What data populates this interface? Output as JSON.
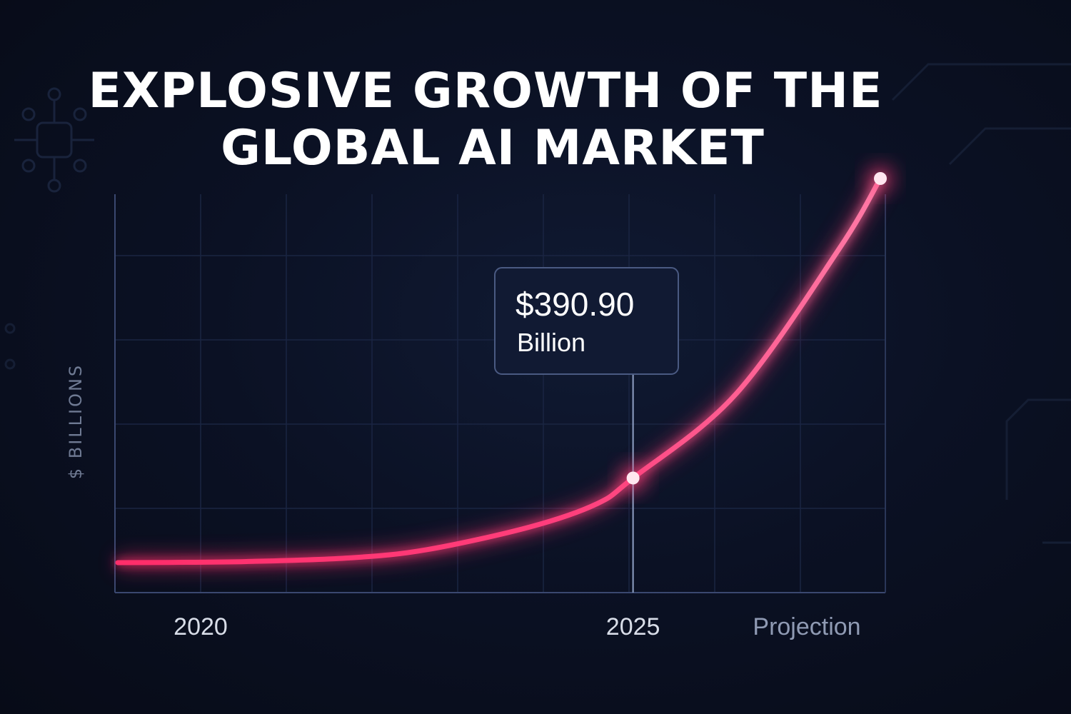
{
  "chart_data": {
    "type": "line",
    "title": "EXPLOSIVE GROWTH OF THE GLOBAL AI MARKET",
    "title_lines": [
      "EXPLOSIVE GROWTH OF THE",
      "GLOBAL AI MARKET"
    ],
    "ylabel": "$ BILLIONS",
    "xlabel": "",
    "x_ticks": [
      "2020",
      "2025",
      "Projection"
    ],
    "grid": true,
    "series": [
      {
        "name": "Global AI Market",
        "color": "#ff3d77",
        "points": [
          {
            "x": 0.0,
            "y": 0
          },
          {
            "x": 0.1,
            "y": 1
          },
          {
            "x": 0.25,
            "y": 5
          },
          {
            "x": 0.45,
            "y": 22
          },
          {
            "x": 0.6,
            "y": 60
          },
          {
            "x": 0.8,
            "y": 165
          },
          {
            "x": 0.93,
            "y": 272
          },
          {
            "x": 1.0,
            "y": 391
          },
          {
            "x": 1.2,
            "y": 780
          },
          {
            "x": 1.4,
            "y": 1450
          },
          {
            "x": 1.48,
            "y": 1775
          }
        ]
      }
    ],
    "x_range": [
      0,
      1.48
    ],
    "ylim": [
      0,
      1775
    ],
    "highlight": {
      "x": 1.0,
      "y": 391,
      "label_value": "$390.90",
      "label_unit": "Billion"
    }
  }
}
